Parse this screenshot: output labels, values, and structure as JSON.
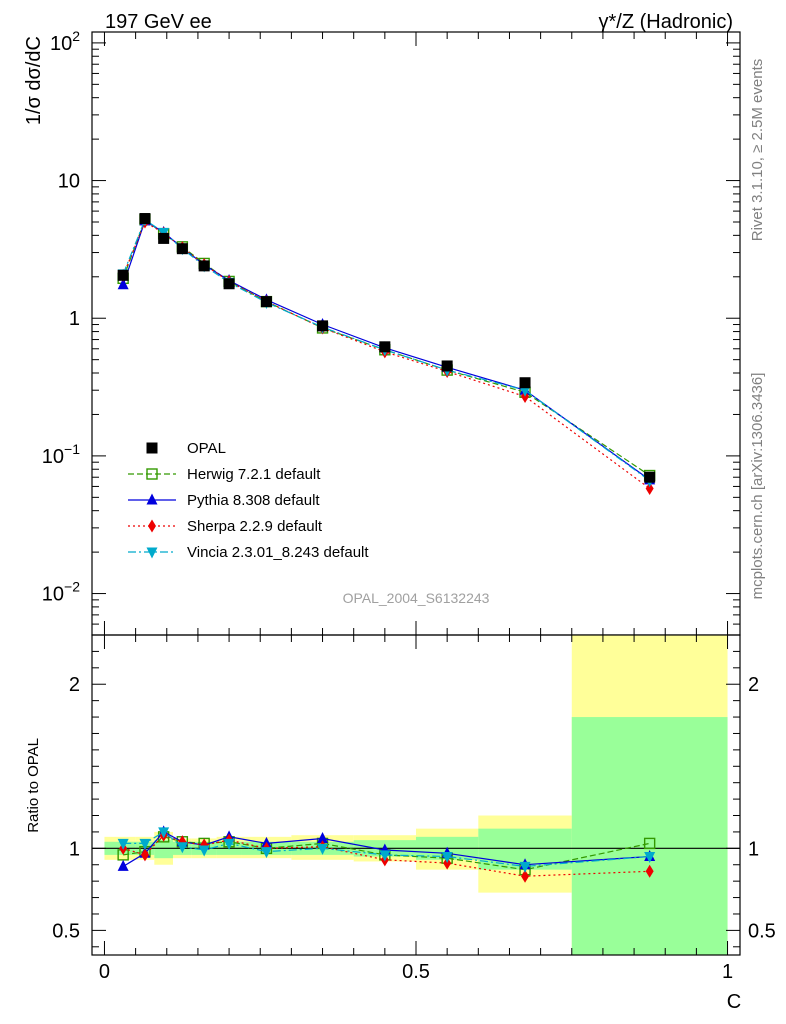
{
  "header": {
    "left_label": "197 GeV ee",
    "right_label": "γ*/Z (Hadronic)"
  },
  "side_labels": {
    "rivet": "Rivet 3.1.10, ≥ 2.5M events",
    "mcplots": "mcplots.cern.ch [arXiv:1306.3436]"
  },
  "analysis_label": "OPAL_2004_S6132243",
  "chart_data": [
    {
      "type": "scatter",
      "panel": "main",
      "ylabel": "1/σ dσ/dC",
      "yscale": "log",
      "ylim": [
        0.005,
        120
      ],
      "xlim": [
        -0.02,
        1.02
      ],
      "ytick_labels": [
        "10^-2",
        "10^-1",
        "1",
        "10",
        "10^2"
      ],
      "legend_placement": "lower-left",
      "x": [
        0.03,
        0.065,
        0.095,
        0.125,
        0.16,
        0.2,
        0.26,
        0.35,
        0.45,
        0.55,
        0.675,
        0.875
      ],
      "series": [
        {
          "name": "OPAL",
          "color": "#000000",
          "marker": "square",
          "line": "none",
          "values": [
            2.05,
            5.3,
            3.8,
            3.2,
            2.4,
            1.78,
            1.32,
            0.88,
            0.62,
            0.45,
            0.34,
            0.07
          ]
        },
        {
          "name": "Herwig 7.2.1 default",
          "color": "#339900",
          "marker": "open-square",
          "line": "dashed",
          "values": [
            1.95,
            5.2,
            4.1,
            3.3,
            2.5,
            1.85,
            1.32,
            0.85,
            0.59,
            0.42,
            0.29,
            0.072
          ]
        },
        {
          "name": "Pythia 8.308 default",
          "color": "#0000dd",
          "marker": "triangle-up",
          "line": "solid",
          "values": [
            1.75,
            5.1,
            4.2,
            3.25,
            2.45,
            1.88,
            1.36,
            0.9,
            0.61,
            0.44,
            0.3,
            0.067
          ]
        },
        {
          "name": "Sherpa 2.2.9 default",
          "color": "#ee0000",
          "marker": "diamond",
          "line": "dotted",
          "values": [
            2.05,
            5.0,
            4.15,
            3.25,
            2.45,
            1.85,
            1.32,
            0.85,
            0.57,
            0.41,
            0.27,
            0.058
          ]
        },
        {
          "name": "Vincia 2.3.01_8.243 default",
          "color": "#00aacc",
          "marker": "triangle-down",
          "line": "dashdot",
          "values": [
            2.1,
            5.2,
            4.2,
            3.2,
            2.4,
            1.82,
            1.3,
            0.86,
            0.59,
            0.42,
            0.3,
            0.066
          ]
        }
      ]
    },
    {
      "type": "scatter",
      "panel": "ratio",
      "ylabel": "Ratio to OPAL",
      "xlabel": "C",
      "ylim": [
        0.35,
        2.3
      ],
      "xlim": [
        -0.02,
        1.02
      ],
      "ytick_labels": [
        "0.5",
        "1",
        "2"
      ],
      "xtick_labels": [
        "0",
        "0.5",
        "1"
      ],
      "reference_line": 1,
      "x": [
        0.03,
        0.065,
        0.095,
        0.125,
        0.16,
        0.2,
        0.26,
        0.35,
        0.45,
        0.55,
        0.675,
        0.875
      ],
      "uncertainty_bands": {
        "colors": {
          "stat": "#99ff99",
          "total": "#ffff99"
        },
        "bins": [
          {
            "x0": 0.0,
            "x1": 0.05,
            "stat": [
              0.96,
              1.04
            ],
            "total": [
              0.93,
              1.07
            ]
          },
          {
            "x0": 0.05,
            "x1": 0.08,
            "stat": [
              0.96,
              1.04
            ],
            "total": [
              0.93,
              1.07
            ]
          },
          {
            "x0": 0.08,
            "x1": 0.11,
            "stat": [
              0.94,
              1.05
            ],
            "total": [
              0.9,
              1.1
            ]
          },
          {
            "x0": 0.11,
            "x1": 0.14,
            "stat": [
              0.96,
              1.04
            ],
            "total": [
              0.94,
              1.06
            ]
          },
          {
            "x0": 0.14,
            "x1": 0.18,
            "stat": [
              0.96,
              1.04
            ],
            "total": [
              0.94,
              1.06
            ]
          },
          {
            "x0": 0.18,
            "x1": 0.22,
            "stat": [
              0.96,
              1.04
            ],
            "total": [
              0.94,
              1.07
            ]
          },
          {
            "x0": 0.22,
            "x1": 0.3,
            "stat": [
              0.96,
              1.04
            ],
            "total": [
              0.94,
              1.07
            ]
          },
          {
            "x0": 0.3,
            "x1": 0.4,
            "stat": [
              0.96,
              1.04
            ],
            "total": [
              0.93,
              1.08
            ]
          },
          {
            "x0": 0.4,
            "x1": 0.5,
            "stat": [
              0.95,
              1.05
            ],
            "total": [
              0.92,
              1.08
            ]
          },
          {
            "x0": 0.5,
            "x1": 0.6,
            "stat": [
              0.93,
              1.07
            ],
            "total": [
              0.87,
              1.12
            ]
          },
          {
            "x0": 0.6,
            "x1": 0.75,
            "stat": [
              0.87,
              1.12
            ],
            "total": [
              0.73,
              1.2
            ]
          },
          {
            "x0": 0.75,
            "x1": 1.0,
            "stat": [
              0.35,
              1.8
            ],
            "total": [
              0.35,
              2.3
            ]
          }
        ]
      },
      "series": [
        {
          "name": "Herwig 7.2.1 default",
          "color": "#339900",
          "marker": "open-square",
          "line": "dashed",
          "values": [
            0.96,
            0.98,
            1.07,
            1.04,
            1.03,
            1.04,
            1.0,
            1.03,
            0.96,
            0.94,
            0.87,
            1.03
          ]
        },
        {
          "name": "Pythia 8.308 default",
          "color": "#0000dd",
          "marker": "triangle-up",
          "line": "solid",
          "values": [
            0.89,
            0.97,
            1.1,
            1.04,
            1.02,
            1.07,
            1.03,
            1.06,
            0.99,
            0.97,
            0.9,
            0.95
          ]
        },
        {
          "name": "Sherpa 2.2.9 default",
          "color": "#ee0000",
          "marker": "diamond",
          "line": "dotted",
          "values": [
            1.0,
            0.96,
            1.08,
            1.04,
            1.02,
            1.05,
            1.0,
            1.01,
            0.93,
            0.91,
            0.83,
            0.86
          ]
        },
        {
          "name": "Vincia 2.3.01_8.243 default",
          "color": "#00aacc",
          "marker": "triangle-down",
          "line": "dashdot",
          "values": [
            1.03,
            1.03,
            1.1,
            1.01,
            0.99,
            1.03,
            0.98,
            1.0,
            0.96,
            0.95,
            0.89,
            0.95
          ]
        }
      ]
    }
  ]
}
